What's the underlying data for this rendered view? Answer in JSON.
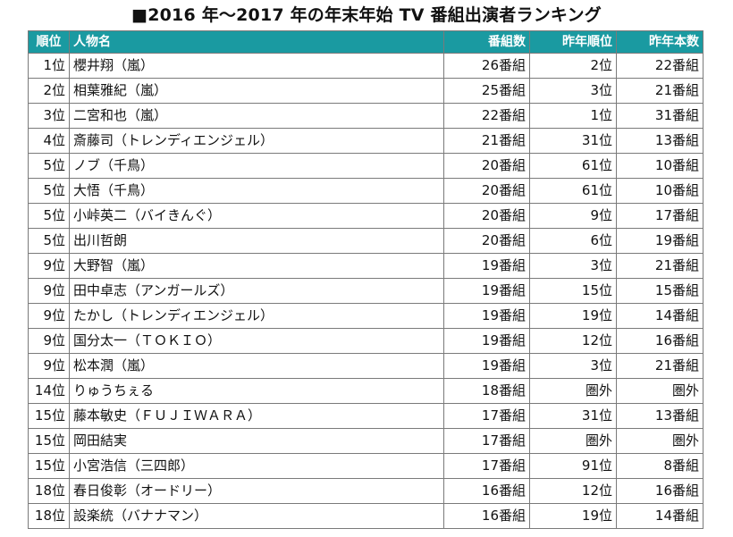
{
  "title": "■2016 年～2017 年の年末年始 TV 番組出演者ランキング",
  "headers": {
    "rank": "順位",
    "name": "人物名",
    "count": "番組数",
    "prev_rank": "昨年順位",
    "prev_count": "昨年本数"
  },
  "rows": [
    {
      "rank": "1位",
      "name": "櫻井翔（嵐）",
      "count": "26番組",
      "prev_rank": "2位",
      "prev_count": "22番組"
    },
    {
      "rank": "2位",
      "name": "相葉雅紀（嵐）",
      "count": "25番組",
      "prev_rank": "3位",
      "prev_count": "21番組"
    },
    {
      "rank": "3位",
      "name": "二宮和也（嵐）",
      "count": "22番組",
      "prev_rank": "1位",
      "prev_count": "31番組"
    },
    {
      "rank": "4位",
      "name": "斎藤司（トレンディエンジェル）",
      "count": "21番組",
      "prev_rank": "31位",
      "prev_count": "13番組"
    },
    {
      "rank": "5位",
      "name": "ノブ（千鳥）",
      "count": "20番組",
      "prev_rank": "61位",
      "prev_count": "10番組"
    },
    {
      "rank": "5位",
      "name": "大悟（千鳥）",
      "count": "20番組",
      "prev_rank": "61位",
      "prev_count": "10番組"
    },
    {
      "rank": "5位",
      "name": "小峠英二（バイきんぐ）",
      "count": "20番組",
      "prev_rank": "9位",
      "prev_count": "17番組"
    },
    {
      "rank": "5位",
      "name": "出川哲朗",
      "count": "20番組",
      "prev_rank": "6位",
      "prev_count": "19番組"
    },
    {
      "rank": "9位",
      "name": "大野智（嵐）",
      "count": "19番組",
      "prev_rank": "3位",
      "prev_count": "21番組"
    },
    {
      "rank": "9位",
      "name": "田中卓志（アンガールズ）",
      "count": "19番組",
      "prev_rank": "15位",
      "prev_count": "15番組"
    },
    {
      "rank": "9位",
      "name": "たかし（トレンディエンジェル）",
      "count": "19番組",
      "prev_rank": "19位",
      "prev_count": "14番組"
    },
    {
      "rank": "9位",
      "name": "国分太一（ＴＯＫＩＯ）",
      "count": "19番組",
      "prev_rank": "12位",
      "prev_count": "16番組"
    },
    {
      "rank": "9位",
      "name": "松本潤（嵐）",
      "count": "19番組",
      "prev_rank": "3位",
      "prev_count": "21番組"
    },
    {
      "rank": "14位",
      "name": "りゅうちぇる",
      "count": "18番組",
      "prev_rank": "圏外",
      "prev_count": "圏外"
    },
    {
      "rank": "15位",
      "name": "藤本敏史（ＦＵＪＩＷＡＲＡ）",
      "count": "17番組",
      "prev_rank": "31位",
      "prev_count": "13番組"
    },
    {
      "rank": "15位",
      "name": "岡田結実",
      "count": "17番組",
      "prev_rank": "圏外",
      "prev_count": "圏外"
    },
    {
      "rank": "15位",
      "name": "小宮浩信（三四郎）",
      "count": "17番組",
      "prev_rank": "91位",
      "prev_count": "8番組"
    },
    {
      "rank": "18位",
      "name": "春日俊彰（オードリー）",
      "count": "16番組",
      "prev_rank": "12位",
      "prev_count": "16番組"
    },
    {
      "rank": "18位",
      "name": "設楽統（バナナマン）",
      "count": "16番組",
      "prev_rank": "19位",
      "prev_count": "14番組"
    }
  ],
  "colors": {
    "header_bg": "#1a9aa1",
    "header_text": "#ffffff",
    "border": "#7a7a7a"
  }
}
